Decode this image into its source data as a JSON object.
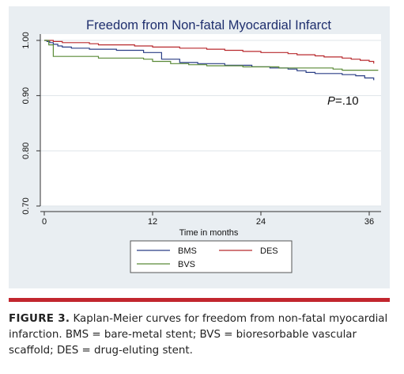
{
  "chart_data": {
    "type": "line",
    "title": "Freedom from Non-fatal Myocardial Infarct",
    "xlabel": "Time in months",
    "ylabel": "",
    "xlim": [
      0,
      37.5
    ],
    "ylim": [
      0.7,
      1.01
    ],
    "x_ticks": [
      "0",
      "12",
      "24",
      "36"
    ],
    "x_tick_values": [
      0,
      12,
      24,
      36
    ],
    "y_ticks": [
      "0.70",
      "0.80",
      "0.90",
      "1.00"
    ],
    "y_tick_values": [
      0.7,
      0.8,
      0.9,
      1.0
    ],
    "grid": "horizontal",
    "legend_position": "bottom",
    "annotation": {
      "italic": "P",
      "rest": "=.10"
    },
    "series": [
      {
        "name": "BMS",
        "color": "#2b3f86",
        "points": [
          [
            0,
            1.0
          ],
          [
            0.3,
            0.998
          ],
          [
            0.6,
            0.996
          ],
          [
            1,
            0.993
          ],
          [
            1.5,
            0.99
          ],
          [
            2,
            0.988
          ],
          [
            3,
            0.986
          ],
          [
            5,
            0.984
          ],
          [
            8,
            0.982
          ],
          [
            11,
            0.978
          ],
          [
            13,
            0.966
          ],
          [
            15,
            0.96
          ],
          [
            17,
            0.958
          ],
          [
            20,
            0.955
          ],
          [
            23,
            0.952
          ],
          [
            25,
            0.95
          ],
          [
            27,
            0.948
          ],
          [
            28,
            0.945
          ],
          [
            29,
            0.942
          ],
          [
            30,
            0.94
          ],
          [
            33,
            0.938
          ],
          [
            34.5,
            0.936
          ],
          [
            35.5,
            0.932
          ],
          [
            36.5,
            0.928
          ]
        ]
      },
      {
        "name": "DES",
        "color": "#b82a2e",
        "points": [
          [
            0,
            1.0
          ],
          [
            1,
            0.998
          ],
          [
            2,
            0.996
          ],
          [
            5,
            0.994
          ],
          [
            6,
            0.992
          ],
          [
            10,
            0.99
          ],
          [
            12,
            0.988
          ],
          [
            15,
            0.986
          ],
          [
            18,
            0.984
          ],
          [
            20,
            0.982
          ],
          [
            22,
            0.98
          ],
          [
            24,
            0.978
          ],
          [
            27,
            0.976
          ],
          [
            28,
            0.974
          ],
          [
            30,
            0.972
          ],
          [
            31,
            0.97
          ],
          [
            33,
            0.968
          ],
          [
            34,
            0.966
          ],
          [
            35,
            0.964
          ],
          [
            36,
            0.962
          ],
          [
            36.5,
            0.958
          ]
        ]
      },
      {
        "name": "BVS",
        "color": "#5a8a37",
        "points": [
          [
            0,
            1.0
          ],
          [
            0.5,
            0.992
          ],
          [
            1,
            0.971
          ],
          [
            6,
            0.968
          ],
          [
            11,
            0.966
          ],
          [
            12,
            0.962
          ],
          [
            14,
            0.958
          ],
          [
            16,
            0.956
          ],
          [
            18,
            0.954
          ],
          [
            22,
            0.952
          ],
          [
            26,
            0.95
          ],
          [
            32,
            0.948
          ],
          [
            33,
            0.946
          ],
          [
            37,
            0.946
          ]
        ]
      }
    ]
  },
  "caption": {
    "label": "FIGURE 3.",
    "text": " Kaplan-Meier curves for freedom from non-fatal myocardial infarction. BMS = bare-metal stent; BVS = bioresorbable vascular scaffold; DES = drug-eluting stent."
  }
}
